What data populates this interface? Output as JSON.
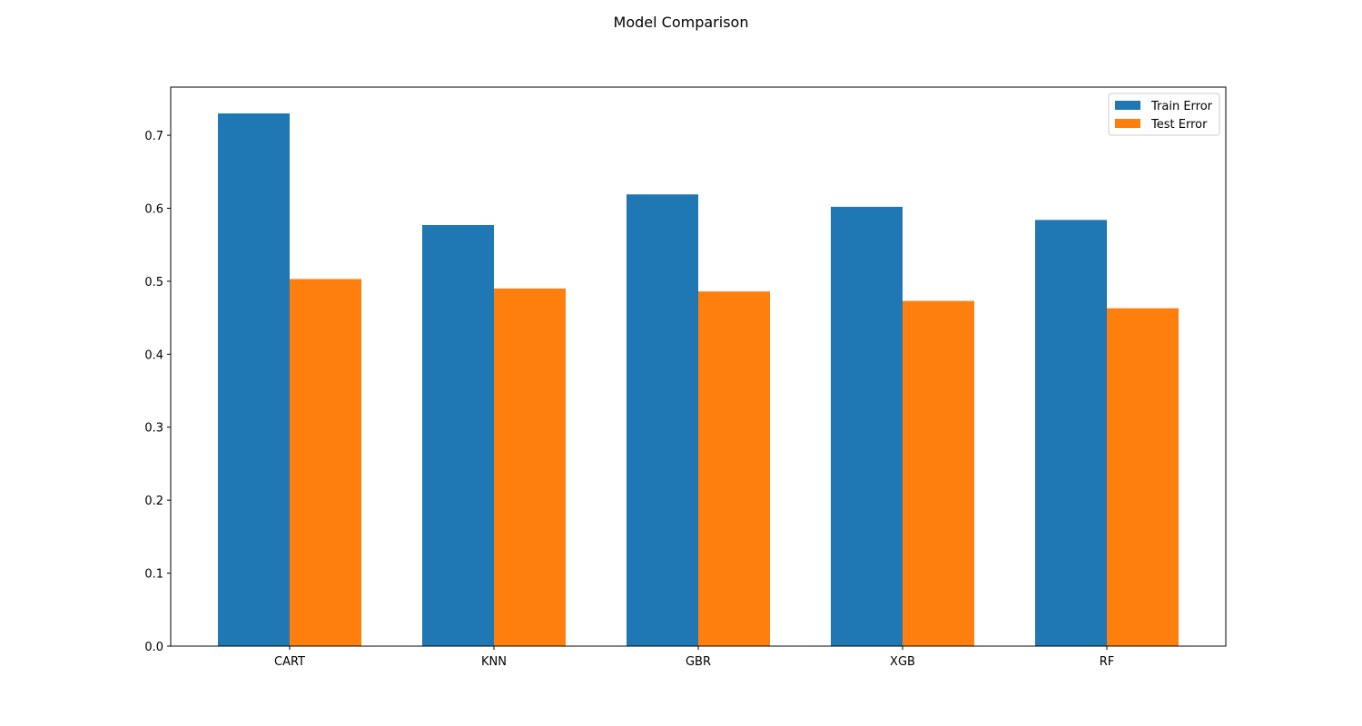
{
  "chart_data": {
    "type": "bar",
    "title": "Model Comparison",
    "xlabel": "",
    "ylabel": "",
    "categories": [
      "CART",
      "KNN",
      "GBR",
      "XGB",
      "RF"
    ],
    "series": [
      {
        "name": "Train Error",
        "values": [
          0.73,
          0.577,
          0.619,
          0.602,
          0.584
        ],
        "color": "#1f77b4"
      },
      {
        "name": "Test Error",
        "values": [
          0.503,
          0.49,
          0.486,
          0.473,
          0.463
        ],
        "color": "#ff7f0e"
      }
    ],
    "ylim": [
      0,
      0.766
    ],
    "yticks": [
      0.0,
      0.1,
      0.2,
      0.3,
      0.4,
      0.5,
      0.6,
      0.7
    ],
    "ytick_labels": [
      "0.0",
      "0.1",
      "0.2",
      "0.3",
      "0.4",
      "0.5",
      "0.6",
      "0.7"
    ],
    "grid": false,
    "legend_position": "top-right"
  }
}
